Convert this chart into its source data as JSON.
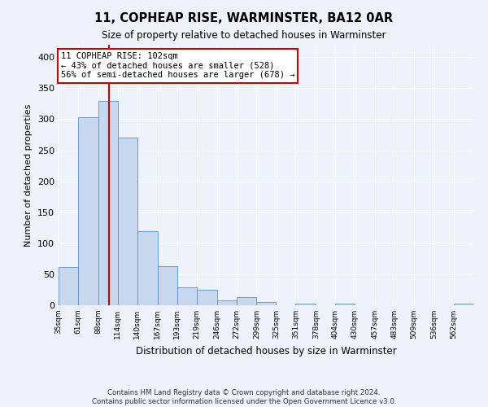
{
  "title": "11, COPHEAP RISE, WARMINSTER, BA12 0AR",
  "subtitle": "Size of property relative to detached houses in Warminster",
  "xlabel": "Distribution of detached houses by size in Warminster",
  "ylabel": "Number of detached properties",
  "bar_color": "#c8d9ef",
  "bar_edge_color": "#5b8fc9",
  "bin_labels": [
    "35sqm",
    "61sqm",
    "88sqm",
    "114sqm",
    "140sqm",
    "167sqm",
    "193sqm",
    "219sqm",
    "246sqm",
    "272sqm",
    "299sqm",
    "325sqm",
    "351sqm",
    "378sqm",
    "404sqm",
    "430sqm",
    "457sqm",
    "483sqm",
    "509sqm",
    "536sqm",
    "562sqm"
  ],
  "bar_values": [
    62,
    303,
    330,
    270,
    119,
    63,
    29,
    25,
    8,
    13,
    5,
    0,
    2,
    0,
    3,
    0,
    0,
    0,
    0,
    0,
    2
  ],
  "ylim": [
    0,
    420
  ],
  "yticks": [
    0,
    50,
    100,
    150,
    200,
    250,
    300,
    350,
    400
  ],
  "property_line_x": 102,
  "annotation_title": "11 COPHEAP RISE: 102sqm",
  "annotation_line1": "← 43% of detached houses are smaller (528)",
  "annotation_line2": "56% of semi-detached houses are larger (678) →",
  "annotation_box_color": "#ffffff",
  "annotation_box_edge_color": "#cc0000",
  "vline_color": "#cc0000",
  "footnote1": "Contains HM Land Registry data © Crown copyright and database right 2024.",
  "footnote2": "Contains public sector information licensed under the Open Government Licence v3.0.",
  "background_color": "#eef2fa",
  "grid_color": "#ffffff",
  "bin_edges": [
    35,
    61,
    88,
    114,
    140,
    167,
    193,
    219,
    246,
    272,
    299,
    325,
    351,
    378,
    404,
    430,
    457,
    483,
    509,
    536,
    562,
    588
  ]
}
